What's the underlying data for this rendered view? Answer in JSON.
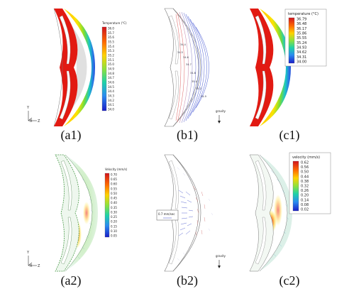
{
  "captions": {
    "a1": "(a1)",
    "b1": "(b1)",
    "c1": "(c1)",
    "a2": "(a2)",
    "b2": "(b2)",
    "c2": "(c2)"
  },
  "legend_a1": {
    "title": "Temperature (°C)",
    "values": [
      "36.0",
      "35.7",
      "35.6",
      "35.5",
      "35.4",
      "35.3",
      "35.2",
      "35.1",
      "35.0",
      "34.9",
      "34.8",
      "34.7",
      "34.6",
      "34.5",
      "34.4",
      "34.3",
      "34.2",
      "34.1",
      "34.0"
    ]
  },
  "legend_c1": {
    "title": "temperature (°C)",
    "values": [
      "36.79",
      "36.48",
      "36.17",
      "35.86",
      "35.55",
      "35.24",
      "34.93",
      "34.62",
      "34.31",
      "34.00"
    ]
  },
  "legend_a2": {
    "title": "Velocity (mm/s)",
    "values": [
      "0.70",
      "0.65",
      "0.60",
      "0.55",
      "0.50",
      "0.45",
      "0.40",
      "0.35",
      "0.30",
      "0.25",
      "0.20",
      "0.15",
      "0.10",
      "0.05"
    ]
  },
  "legend_c2": {
    "title": "velocity (mm/s)",
    "values": [
      "0.62",
      "0.56",
      "0.50",
      "0.44",
      "0.38",
      "0.32",
      "0.26",
      "0.20",
      "0.14",
      "0.08",
      "0.02"
    ]
  },
  "b1": {
    "gravity": "gravity",
    "contour_labels": [
      "34.5",
      "34.6",
      "34.7",
      "34.8",
      "35.0",
      "35.2",
      "34.9",
      "34.4"
    ]
  },
  "b2": {
    "gravity": "gravity",
    "ref_vector": "0.7 mm/sec"
  },
  "axes": {
    "y": "Y",
    "z": "Z",
    "x": "X"
  },
  "colors": {
    "hot": "#e61e14",
    "warm": "#ff8a00",
    "mid": "#ffe600",
    "green": "#33cc33",
    "cyan": "#19c8e6",
    "blue": "#1e32d2",
    "stream_red": "#e07070",
    "stream_blue": "#5a6ad8"
  }
}
